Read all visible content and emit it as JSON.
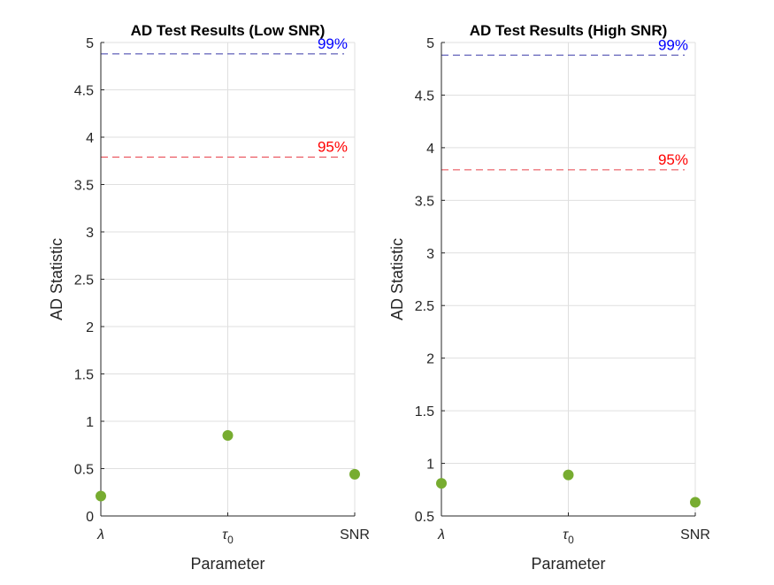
{
  "chart_data": [
    {
      "type": "scatter",
      "title": "AD Test Results (Low SNR)",
      "xlabel": "Parameter",
      "ylabel": "AD Statistic",
      "categories": [
        "λ",
        "τ0",
        "SNR"
      ],
      "values": [
        0.21,
        0.85,
        0.44
      ],
      "ylim": [
        0,
        5
      ],
      "yticks": [
        0,
        0.5,
        1,
        1.5,
        2,
        2.5,
        3,
        3.5,
        4,
        4.5,
        5
      ],
      "ytick_labels": [
        "0",
        "0.5",
        "1",
        "1.5",
        "2",
        "2.5",
        "3",
        "3.5",
        "4",
        "4.5",
        "5"
      ],
      "grid": true,
      "marker_color": "#77AC30",
      "reference_lines": [
        {
          "label": "95%",
          "value": 3.79,
          "color": "#E8414B",
          "label_color": "#FF0000"
        },
        {
          "label": "99%",
          "value": 4.88,
          "color": "#3A3AA8",
          "label_color": "#0000FF"
        }
      ]
    },
    {
      "type": "scatter",
      "title": "AD Test Results (High SNR)",
      "xlabel": "Parameter",
      "ylabel": "AD Statistic",
      "categories": [
        "λ",
        "τ0",
        "SNR"
      ],
      "values": [
        0.81,
        0.89,
        0.63
      ],
      "ylim": [
        0.5,
        5
      ],
      "yticks": [
        0.5,
        1,
        1.5,
        2,
        2.5,
        3,
        3.5,
        4,
        4.5,
        5
      ],
      "ytick_labels": [
        "0.5",
        "1",
        "1.5",
        "2",
        "2.5",
        "3",
        "3.5",
        "4",
        "4.5",
        "5"
      ],
      "grid": true,
      "marker_color": "#77AC30",
      "reference_lines": [
        {
          "label": "95%",
          "value": 3.79,
          "color": "#E8414B",
          "label_color": "#FF0000"
        },
        {
          "label": "99%",
          "value": 4.88,
          "color": "#3A3AA8",
          "label_color": "#0000FF"
        }
      ]
    }
  ]
}
